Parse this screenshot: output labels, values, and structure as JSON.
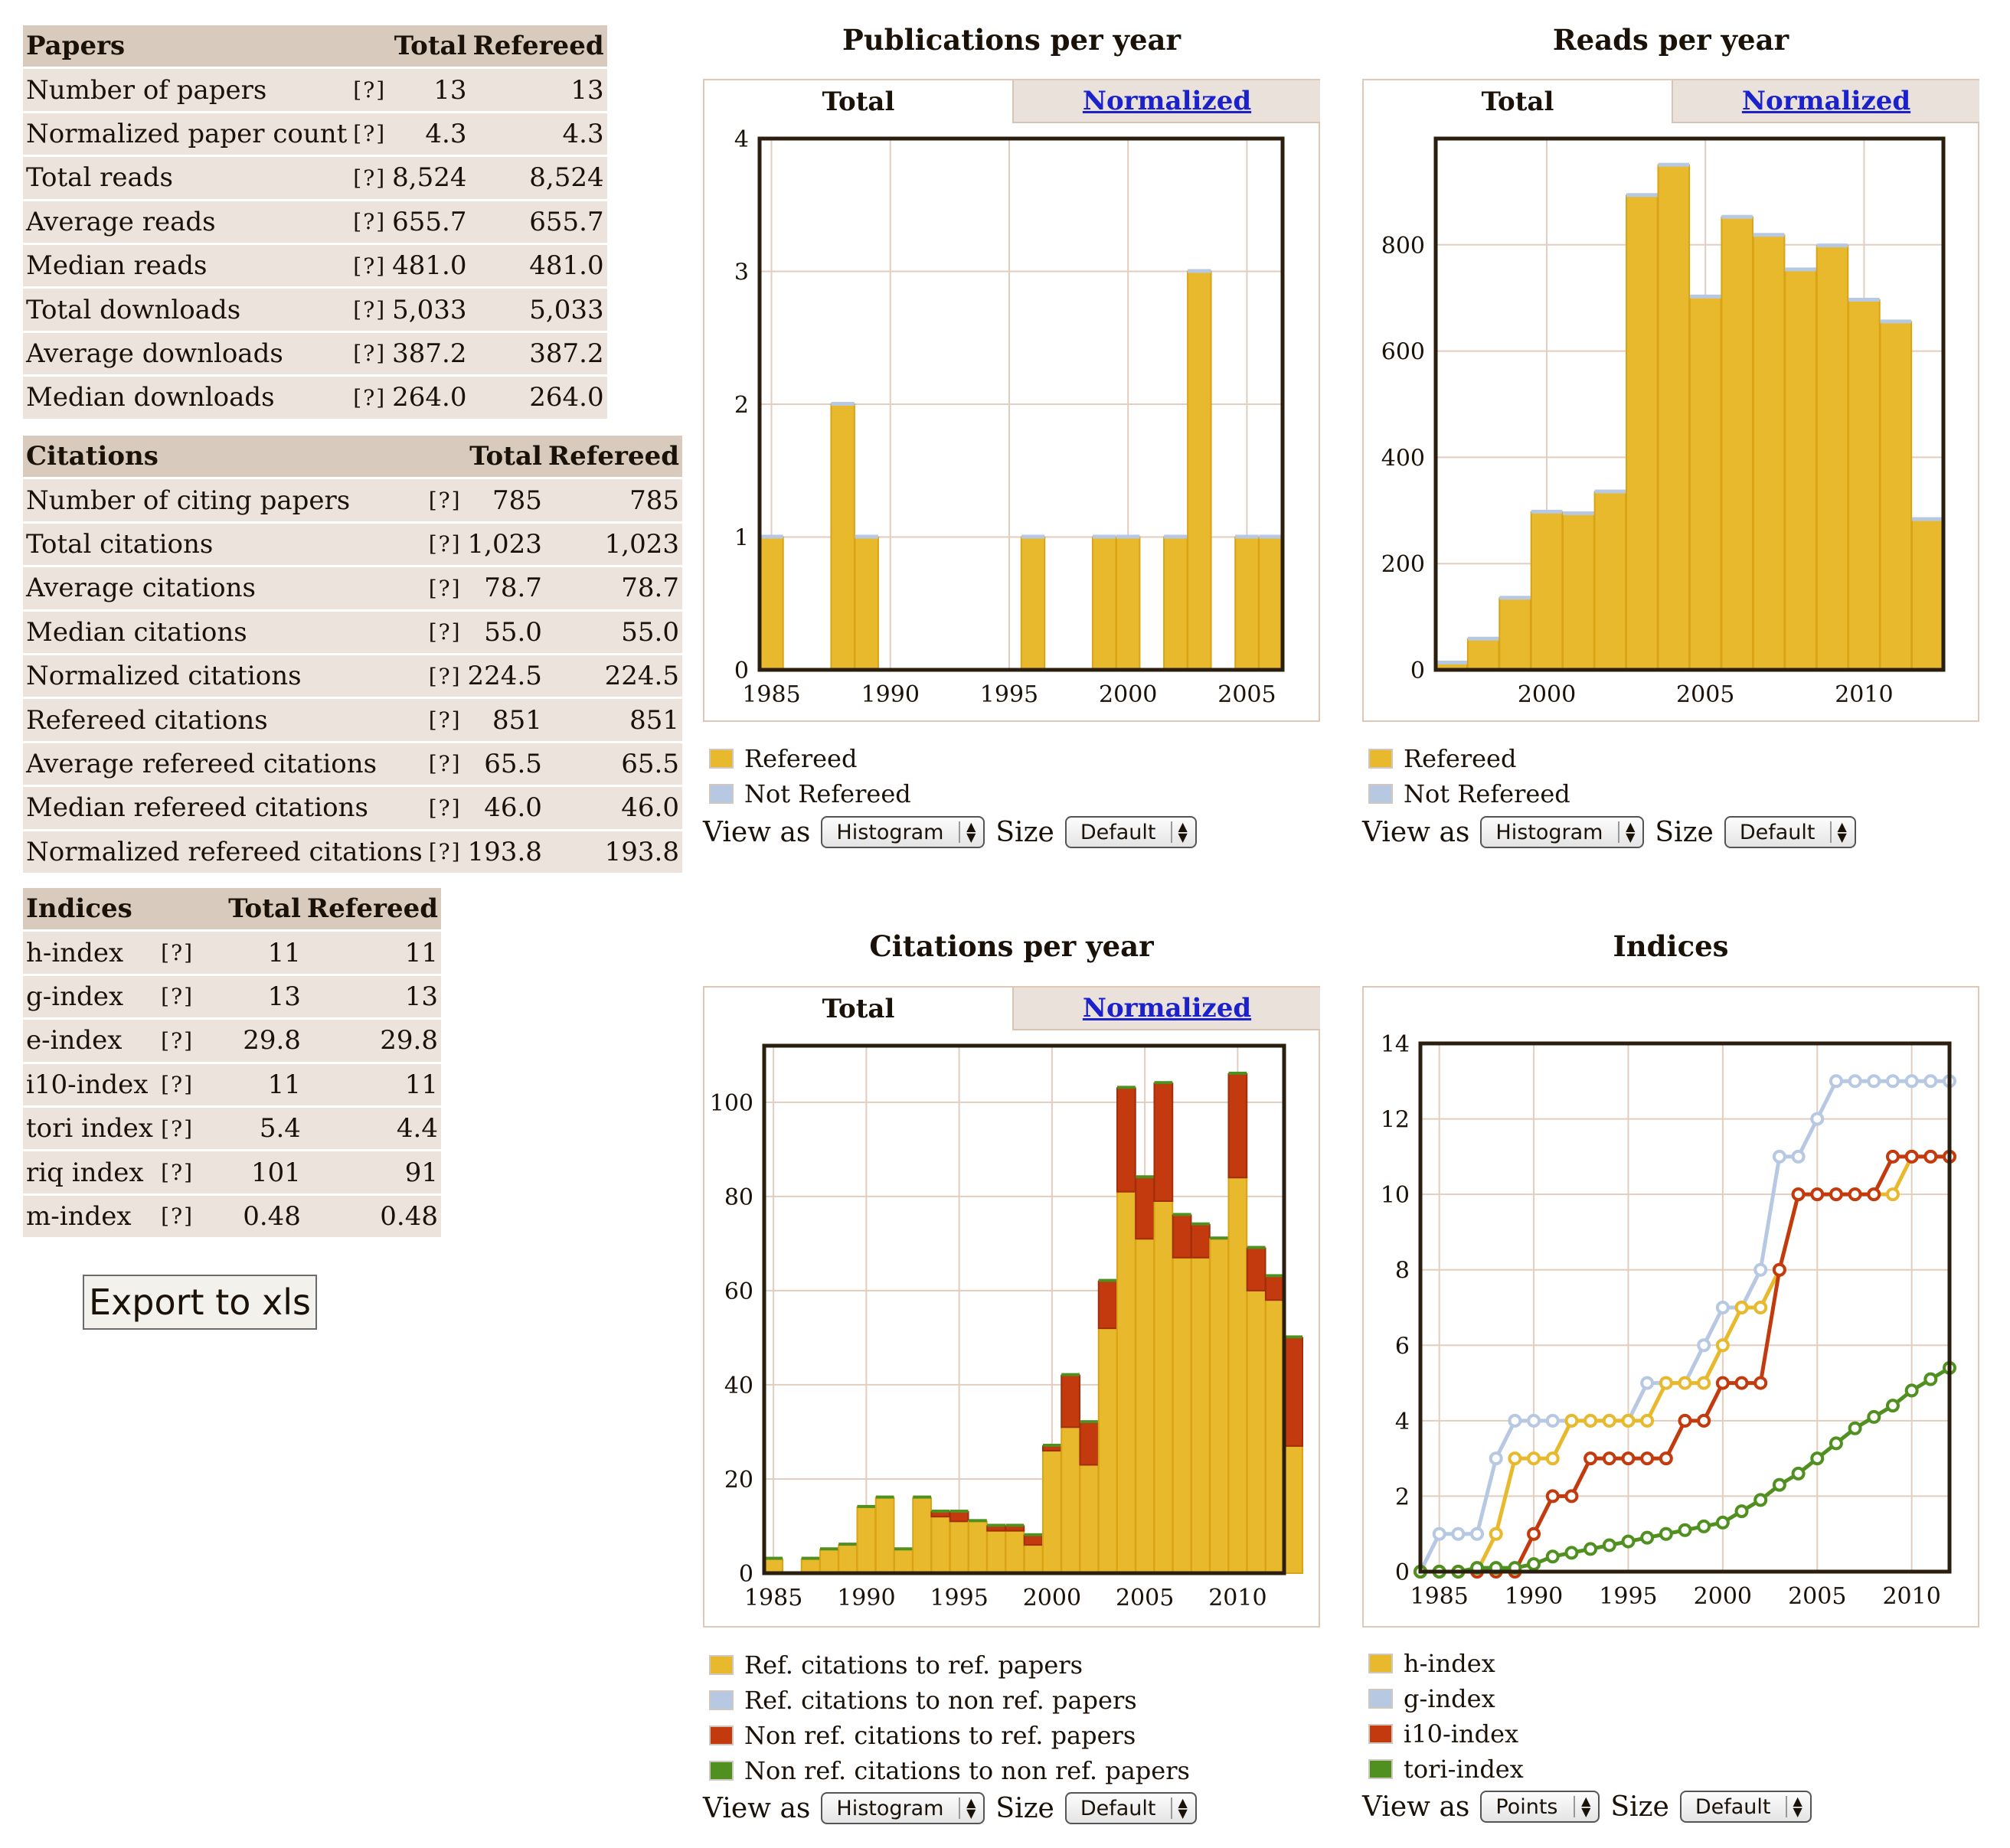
{
  "papers": {
    "header": [
      "Papers",
      "Total",
      "Refereed"
    ],
    "help": "[?]",
    "rows": [
      [
        "Number of papers",
        "13",
        "13"
      ],
      [
        "Normalized paper count",
        "4.3",
        "4.3"
      ],
      [
        "Total reads",
        "8,524",
        "8,524"
      ],
      [
        "Average reads",
        "655.7",
        "655.7"
      ],
      [
        "Median reads",
        "481.0",
        "481.0"
      ],
      [
        "Total downloads",
        "5,033",
        "5,033"
      ],
      [
        "Average downloads",
        "387.2",
        "387.2"
      ],
      [
        "Median downloads",
        "264.0",
        "264.0"
      ]
    ]
  },
  "citations": {
    "header": [
      "Citations",
      "Total",
      "Refereed"
    ],
    "help": "[?]",
    "rows": [
      [
        "Number of citing papers",
        "785",
        "785"
      ],
      [
        "Total citations",
        "1,023",
        "1,023"
      ],
      [
        "Average citations",
        "78.7",
        "78.7"
      ],
      [
        "Median citations",
        "55.0",
        "55.0"
      ],
      [
        "Normalized citations",
        "224.5",
        "224.5"
      ],
      [
        "Refereed citations",
        "851",
        "851"
      ],
      [
        "Average refereed citations",
        "65.5",
        "65.5"
      ],
      [
        "Median refereed citations",
        "46.0",
        "46.0"
      ],
      [
        "Normalized refereed citations",
        "193.8",
        "193.8"
      ]
    ]
  },
  "indices": {
    "header": [
      "Indices",
      "Total",
      "Refereed"
    ],
    "help": "[?]",
    "rows": [
      [
        "h-index",
        "11",
        "11"
      ],
      [
        "g-index",
        "13",
        "13"
      ],
      [
        "e-index",
        "29.8",
        "29.8"
      ],
      [
        "i10-index",
        "11",
        "11"
      ],
      [
        "tori index",
        "5.4",
        "4.4"
      ],
      [
        "riq index",
        "101",
        "91"
      ],
      [
        "m-index",
        "0.48",
        "0.48"
      ]
    ]
  },
  "export_label": "Export to xls",
  "controls": {
    "view_as": "View as",
    "size": "Size",
    "tab_total": "Total",
    "tab_normalized": "Normalized"
  },
  "colors": {
    "refereed": "#e8b92c",
    "not_refereed": "#b7c8e2",
    "non_ref": "#c23a0e",
    "non_ref_non_ref": "#4f9020"
  },
  "chart_data": [
    {
      "id": "pubs",
      "type": "bar",
      "title": "Publications per year",
      "view": "Histogram",
      "size": "Default",
      "x": [
        1985,
        1986,
        1987,
        1988,
        1989,
        1990,
        1991,
        1992,
        1993,
        1994,
        1995,
        1996,
        1997,
        1998,
        1999,
        2000,
        2001,
        2002,
        2003,
        2004,
        2005,
        2006
      ],
      "series": [
        {
          "name": "Refereed",
          "values": [
            1,
            0,
            0,
            2,
            1,
            0,
            0,
            0,
            0,
            0,
            0,
            1,
            0,
            0,
            1,
            1,
            0,
            1,
            3,
            0,
            1,
            1
          ]
        },
        {
          "name": "Not Refereed",
          "values": [
            0,
            0,
            0,
            0,
            0,
            0,
            0,
            0,
            0,
            0,
            0,
            0,
            0,
            0,
            0,
            0,
            0,
            0,
            0,
            0,
            0,
            0
          ]
        }
      ],
      "xlim": [
        1984.5,
        2006.5
      ],
      "ylim": [
        0,
        4
      ],
      "yticks": [
        0,
        1,
        2,
        3,
        4
      ],
      "xticks": [
        1985,
        1990,
        1995,
        2000,
        2005
      ]
    },
    {
      "id": "reads",
      "type": "bar",
      "title": "Reads per year",
      "view": "Histogram",
      "size": "Default",
      "x": [
        1997,
        1998,
        1999,
        2000,
        2001,
        2002,
        2003,
        2004,
        2005,
        2006,
        2007,
        2008,
        2009,
        2010,
        2011,
        2012,
        2013
      ],
      "series": [
        {
          "name": "Refereed",
          "values": [
            13,
            58,
            135,
            297,
            294,
            335,
            893,
            950,
            702,
            852,
            818,
            753,
            798,
            696,
            655,
            283,
            0
          ]
        },
        {
          "name": "Not Refereed",
          "values": [
            0,
            0,
            0,
            0,
            0,
            0,
            0,
            0,
            0,
            0,
            0,
            0,
            0,
            0,
            0,
            0,
            0
          ]
        }
      ],
      "xlim": [
        1996.5,
        2012.5
      ],
      "ylim": [
        0,
        1000
      ],
      "yticks": [
        0,
        200,
        400,
        600,
        800
      ],
      "xticks": [
        2000,
        2005,
        2010
      ]
    },
    {
      "id": "cites",
      "type": "bar",
      "title": "Citations per year",
      "view": "Histogram",
      "size": "Default",
      "x": [
        1985,
        1986,
        1987,
        1988,
        1989,
        1990,
        1991,
        1992,
        1993,
        1994,
        1995,
        1996,
        1997,
        1998,
        1999,
        2000,
        2001,
        2002,
        2003,
        2004,
        2005,
        2006,
        2007,
        2008,
        2009,
        2010,
        2011,
        2012,
        2013
      ],
      "series": [
        {
          "name": "Ref. citations to ref. papers",
          "values": [
            3,
            0,
            3,
            5,
            6,
            14,
            16,
            5,
            16,
            12,
            11,
            11,
            9,
            9,
            6,
            26,
            31,
            23,
            52,
            81,
            71,
            79,
            67,
            67,
            71,
            84,
            60,
            58,
            27
          ]
        },
        {
          "name": "Ref. citations to non ref. papers",
          "values": [
            0,
            0,
            0,
            0,
            0,
            0,
            0,
            0,
            0,
            0,
            0,
            0,
            0,
            0,
            0,
            0,
            0,
            0,
            0,
            0,
            0,
            0,
            0,
            0,
            0,
            0,
            0,
            0,
            0
          ]
        },
        {
          "name": "Non ref. citations to ref. papers",
          "values": [
            0,
            0,
            0,
            0,
            0,
            0,
            0,
            0,
            0,
            1,
            2,
            0,
            1,
            1,
            2,
            1,
            11,
            9,
            10,
            22,
            13,
            25,
            9,
            7,
            0,
            22,
            9,
            5,
            23
          ]
        },
        {
          "name": "Non ref. citations to non ref. papers",
          "values": [
            0,
            0,
            0,
            0,
            0,
            0,
            0,
            0,
            0,
            0,
            0,
            0,
            0,
            0,
            0,
            0,
            0,
            0,
            0,
            0,
            0,
            0,
            0,
            0,
            0,
            0,
            0,
            0,
            0
          ]
        }
      ],
      "xlim": [
        1984.5,
        2012.5
      ],
      "ylim": [
        0,
        112
      ],
      "yticks": [
        0,
        20,
        40,
        60,
        80,
        100
      ],
      "xticks": [
        1985,
        1990,
        1995,
        2000,
        2005,
        2010
      ]
    },
    {
      "id": "indices",
      "type": "line",
      "title": "Indices",
      "view": "Points",
      "size": "Default",
      "x": [
        1984,
        1985,
        1986,
        1987,
        1988,
        1989,
        1990,
        1991,
        1992,
        1993,
        1994,
        1995,
        1996,
        1997,
        1998,
        1999,
        2000,
        2001,
        2002,
        2003,
        2004,
        2005,
        2006,
        2007,
        2008,
        2009,
        2010,
        2011,
        2012
      ],
      "series": [
        {
          "name": "h-index",
          "values": [
            0,
            0,
            0,
            0,
            1,
            3,
            3,
            3,
            4,
            4,
            4,
            4,
            4,
            5,
            5,
            5,
            6,
            7,
            7,
            8,
            10,
            10,
            10,
            10,
            10,
            10,
            11,
            11,
            11
          ]
        },
        {
          "name": "g-index",
          "values": [
            0,
            1,
            1,
            1,
            3,
            4,
            4,
            4,
            4,
            4,
            4,
            4,
            5,
            5,
            5,
            6,
            7,
            7,
            8,
            11,
            11,
            12,
            13,
            13,
            13,
            13,
            13,
            13,
            13
          ]
        },
        {
          "name": "i10-index",
          "values": [
            0,
            0,
            0,
            0,
            0,
            0,
            1,
            2,
            2,
            3,
            3,
            3,
            3,
            3,
            4,
            4,
            5,
            5,
            5,
            8,
            10,
            10,
            10,
            10,
            10,
            11,
            11,
            11,
            11
          ]
        },
        {
          "name": "tori-index",
          "values": [
            0,
            0,
            0,
            0.1,
            0.1,
            0.1,
            0.2,
            0.4,
            0.5,
            0.6,
            0.7,
            0.8,
            0.9,
            1.0,
            1.1,
            1.2,
            1.3,
            1.6,
            1.9,
            2.3,
            2.6,
            3.0,
            3.4,
            3.8,
            4.1,
            4.4,
            4.8,
            5.1,
            5.4
          ]
        }
      ],
      "xlim": [
        1984,
        2012
      ],
      "ylim": [
        0,
        14
      ],
      "yticks": [
        0,
        2,
        4,
        6,
        8,
        10,
        12,
        14
      ],
      "xticks": [
        1985,
        1990,
        1995,
        2000,
        2005,
        2010
      ]
    }
  ]
}
